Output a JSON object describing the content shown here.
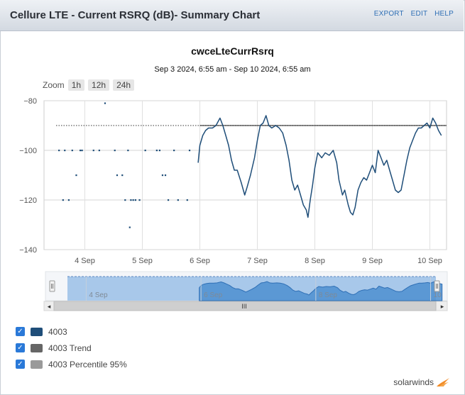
{
  "header": {
    "title": "Cellure LTE - Current RSRQ (dB)- Summary Chart",
    "links": [
      "EXPORT",
      "EDIT",
      "HELP"
    ]
  },
  "zoom": {
    "label": "Zoom",
    "buttons": [
      "1h",
      "12h",
      "24h"
    ]
  },
  "legend": [
    {
      "label": "4003",
      "color": "#1f4e79"
    },
    {
      "label": "4003 Trend",
      "color": "#666666"
    },
    {
      "label": "4003 Percentile 95%",
      "color": "#9a9a9a"
    }
  ],
  "brand": "solarwinds",
  "navigator": {
    "ticks": [
      "4 Sep",
      "6 Sep",
      "8 Sep",
      "10"
    ],
    "scroll_grip": "III"
  },
  "chart_data": {
    "type": "line",
    "title": "cwceLteCurrRsrq",
    "subtitle": "Sep 3 2024, 6:55 am - Sep 10 2024, 6:55 am",
    "xlabel": "",
    "ylabel": "",
    "x_ticks": [
      "4 Sep",
      "5 Sep",
      "6 Sep",
      "7 Sep",
      "8 Sep",
      "9 Sep",
      "10 Sep"
    ],
    "y_ticks": [
      -80,
      -100,
      -120,
      -140
    ],
    "ylim": [
      -140,
      -80
    ],
    "xlim_days": [
      3.29,
      10.29
    ],
    "grid": true,
    "series": [
      {
        "name": "4003",
        "color": "#1f4e79",
        "sparse_points": [
          [
            3.55,
            -100
          ],
          [
            3.62,
            -120
          ],
          [
            3.65,
            -100
          ],
          [
            3.72,
            -120
          ],
          [
            3.78,
            -100
          ],
          [
            3.85,
            -110
          ],
          [
            3.92,
            -100
          ],
          [
            3.95,
            -100
          ],
          [
            4.15,
            -100
          ],
          [
            4.25,
            -100
          ],
          [
            4.35,
            -81
          ],
          [
            4.52,
            -100
          ],
          [
            4.56,
            -110
          ],
          [
            4.65,
            -110
          ],
          [
            4.7,
            -120
          ],
          [
            4.75,
            -100
          ],
          [
            4.78,
            -131
          ],
          [
            4.8,
            -120
          ],
          [
            4.84,
            -120
          ],
          [
            4.88,
            -120
          ],
          [
            4.95,
            -120
          ],
          [
            5.05,
            -100
          ],
          [
            5.25,
            -100
          ],
          [
            5.3,
            -100
          ],
          [
            5.35,
            -110
          ],
          [
            5.4,
            -110
          ],
          [
            5.45,
            -120
          ],
          [
            5.55,
            -100
          ],
          [
            5.62,
            -120
          ],
          [
            5.78,
            -120
          ],
          [
            5.82,
            -100
          ]
        ],
        "continuous": [
          [
            5.97,
            -105
          ],
          [
            6.0,
            -98
          ],
          [
            6.05,
            -94
          ],
          [
            6.1,
            -92
          ],
          [
            6.15,
            -91
          ],
          [
            6.22,
            -91
          ],
          [
            6.28,
            -90
          ],
          [
            6.35,
            -87
          ],
          [
            6.4,
            -90
          ],
          [
            6.45,
            -94
          ],
          [
            6.5,
            -98
          ],
          [
            6.55,
            -104
          ],
          [
            6.6,
            -108
          ],
          [
            6.65,
            -108
          ],
          [
            6.72,
            -113
          ],
          [
            6.78,
            -118
          ],
          [
            6.82,
            -115
          ],
          [
            6.88,
            -110
          ],
          [
            6.95,
            -103
          ],
          [
            7.0,
            -96
          ],
          [
            7.05,
            -90
          ],
          [
            7.1,
            -89
          ],
          [
            7.15,
            -86
          ],
          [
            7.2,
            -90
          ],
          [
            7.25,
            -91
          ],
          [
            7.32,
            -90
          ],
          [
            7.38,
            -91
          ],
          [
            7.44,
            -93
          ],
          [
            7.5,
            -98
          ],
          [
            7.55,
            -104
          ],
          [
            7.6,
            -112
          ],
          [
            7.65,
            -116
          ],
          [
            7.7,
            -114
          ],
          [
            7.75,
            -118
          ],
          [
            7.8,
            -122
          ],
          [
            7.85,
            -124
          ],
          [
            7.88,
            -127
          ],
          [
            7.92,
            -120
          ],
          [
            7.96,
            -114
          ],
          [
            8.0,
            -107
          ],
          [
            8.05,
            -101
          ],
          [
            8.12,
            -103
          ],
          [
            8.18,
            -101
          ],
          [
            8.25,
            -102
          ],
          [
            8.32,
            -100
          ],
          [
            8.38,
            -105
          ],
          [
            8.42,
            -112
          ],
          [
            8.48,
            -118
          ],
          [
            8.52,
            -116
          ],
          [
            8.58,
            -122
          ],
          [
            8.62,
            -125
          ],
          [
            8.66,
            -126
          ],
          [
            8.7,
            -123
          ],
          [
            8.75,
            -116
          ],
          [
            8.8,
            -113
          ],
          [
            8.85,
            -111
          ],
          [
            8.9,
            -112
          ],
          [
            8.95,
            -109
          ],
          [
            9.0,
            -106
          ],
          [
            9.05,
            -109
          ],
          [
            9.1,
            -100
          ],
          [
            9.15,
            -103
          ],
          [
            9.2,
            -106
          ],
          [
            9.25,
            -104
          ],
          [
            9.3,
            -108
          ],
          [
            9.35,
            -112
          ],
          [
            9.4,
            -116
          ],
          [
            9.45,
            -117
          ],
          [
            9.5,
            -116
          ],
          [
            9.55,
            -110
          ],
          [
            9.6,
            -104
          ],
          [
            9.65,
            -99
          ],
          [
            9.7,
            -96
          ],
          [
            9.75,
            -93
          ],
          [
            9.8,
            -91
          ],
          [
            9.85,
            -91
          ],
          [
            9.9,
            -90
          ],
          [
            9.95,
            -89
          ],
          [
            10.0,
            -91
          ],
          [
            10.05,
            -87
          ],
          [
            10.1,
            -89
          ],
          [
            10.15,
            -92
          ],
          [
            10.2,
            -94
          ]
        ]
      },
      {
        "name": "4003 Trend",
        "color": "#666666",
        "x": [
          6.0,
          10.29
        ],
        "values": [
          -90,
          -90
        ]
      },
      {
        "name": "4003 Percentile 95%",
        "color": "#9a9a9a",
        "x": [
          3.29,
          10.29
        ],
        "values": [
          -90,
          -90
        ]
      }
    ]
  }
}
